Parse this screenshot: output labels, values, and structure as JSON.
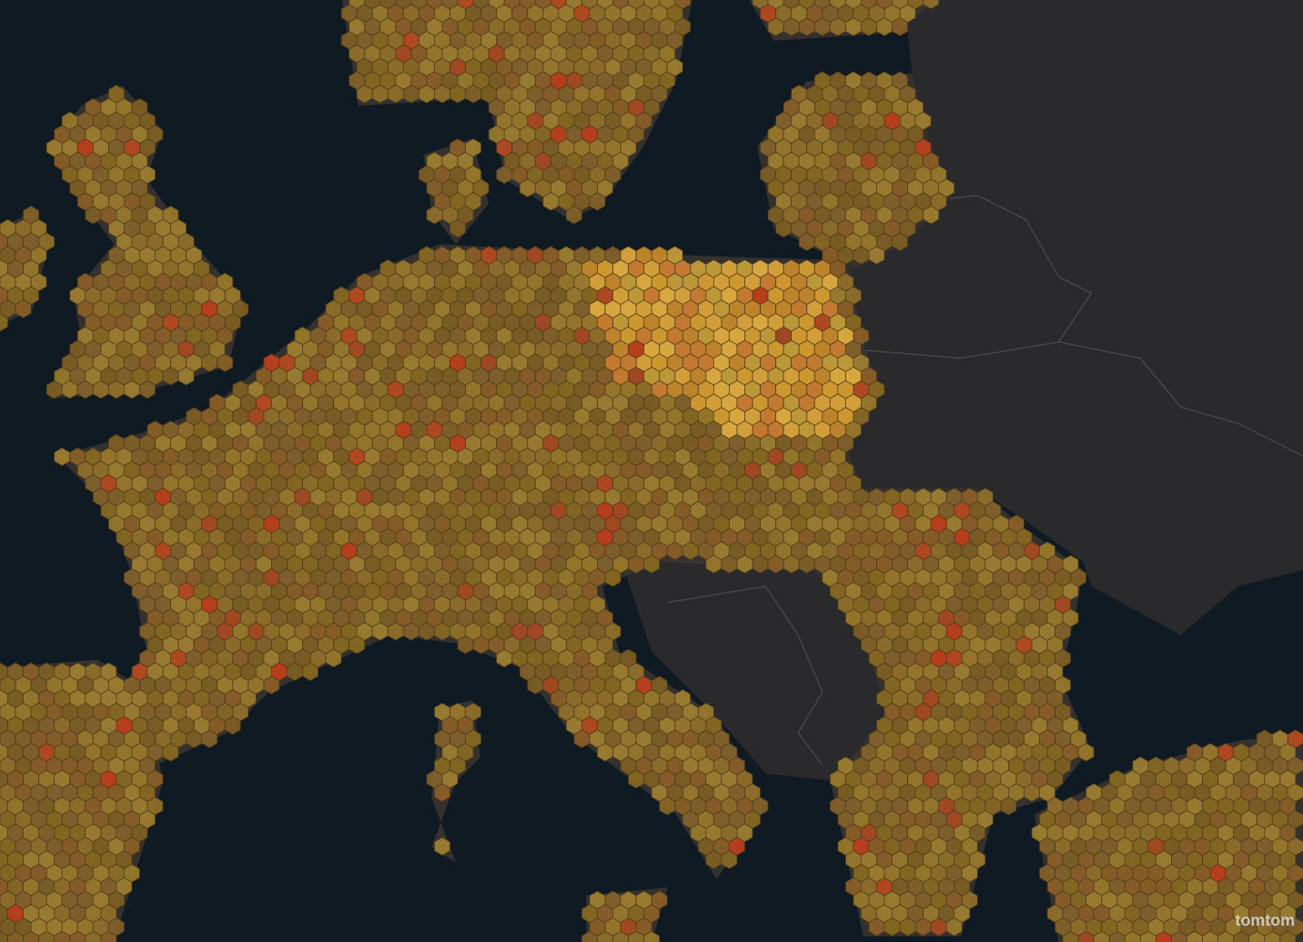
{
  "attribution": {
    "logo": "tomtom"
  }
}
